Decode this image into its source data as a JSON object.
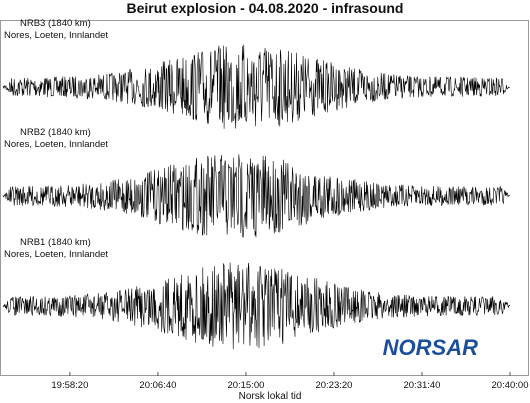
{
  "chart_data": {
    "type": "line",
    "title": "Beirut explosion - 04.08.2020 - infrasound",
    "xlabel": "Norsk lokal tid",
    "ylabel": "",
    "x_ticks": [
      "19:58:20",
      "20:06:40",
      "20:15:00",
      "20:23:20",
      "20:31:40",
      "20:40:00"
    ],
    "xlim": [
      "19:52:00",
      "20:40:00"
    ],
    "grid": false,
    "series": [
      {
        "name": "NRB3 (1840 km)",
        "location": "Nores, Loeten, Innlandet",
        "peak_time": "20:15:00",
        "relative_peak_amplitude": 1.0
      },
      {
        "name": "NRB2 (1840 km)",
        "location": "Nores, Loeten, Innlandet",
        "peak_time": "20:14:00",
        "relative_peak_amplitude": 1.0
      },
      {
        "name": "NRB1 (1840 km)",
        "location": "Nores, Loeten, Innlandet",
        "peak_time": "20:14:30",
        "relative_peak_amplitude": 1.0
      }
    ]
  },
  "logo": {
    "text": "NORSAR",
    "color": "#1b4f9c"
  },
  "colors": {
    "trace": "#000000",
    "axis": "#555555"
  }
}
